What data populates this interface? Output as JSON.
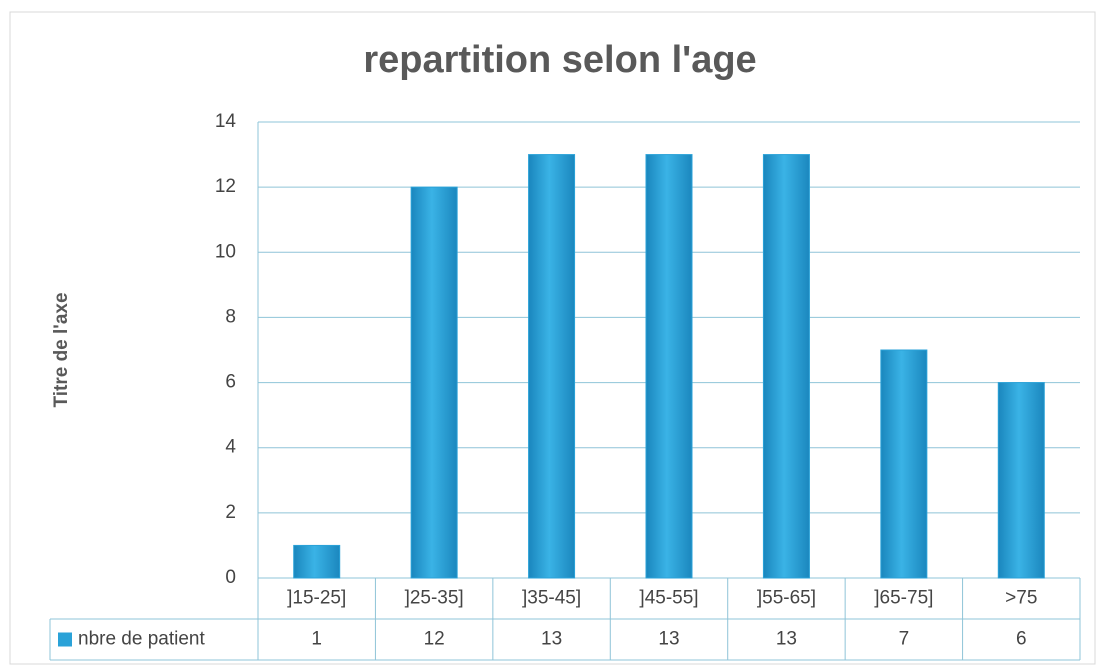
{
  "chart_data": {
    "type": "bar",
    "title": "repartition selon l'age",
    "y_axis_label": "Titre de l'axe",
    "categories": [
      "]15-25]",
      "]25-35]",
      "]35-45]",
      "]45-55]",
      "]55-65]",
      "]65-75]",
      ">75"
    ],
    "series": [
      {
        "name": "nbre de patient",
        "color": "#2aa2d8",
        "values": [
          1,
          12,
          13,
          13,
          13,
          7,
          6
        ]
      }
    ],
    "ylim": [
      0,
      14
    ],
    "yticks": [
      0,
      2,
      4,
      6,
      8,
      10,
      12,
      14
    ],
    "grid": true,
    "data_table": true
  }
}
